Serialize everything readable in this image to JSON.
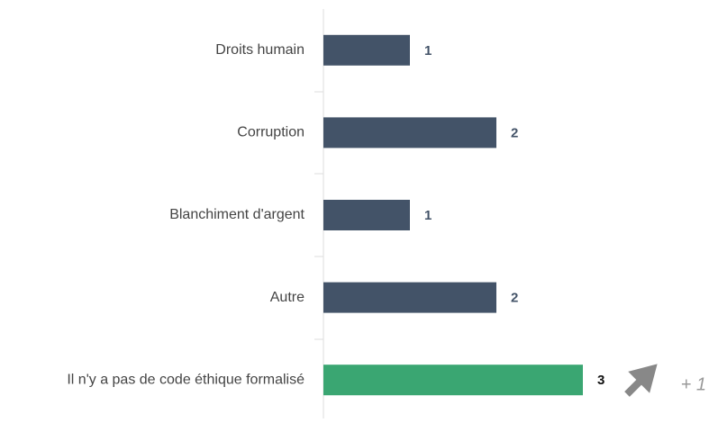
{
  "chart_data": {
    "type": "bar",
    "orientation": "horizontal",
    "categories": [
      "Droits humain",
      "Corruption",
      "Blanchiment d'argent",
      "Autre",
      "Il n'y a pas de code éthique formalisé"
    ],
    "values": [
      1,
      2,
      1,
      2,
      3
    ],
    "colors": [
      "#435368",
      "#435368",
      "#435368",
      "#435368",
      "#3aa672"
    ],
    "label_colors": [
      "#435368",
      "#435368",
      "#435368",
      "#435368",
      "#111111"
    ],
    "xlim": [
      0,
      4
    ],
    "annotation": "+ 1"
  }
}
